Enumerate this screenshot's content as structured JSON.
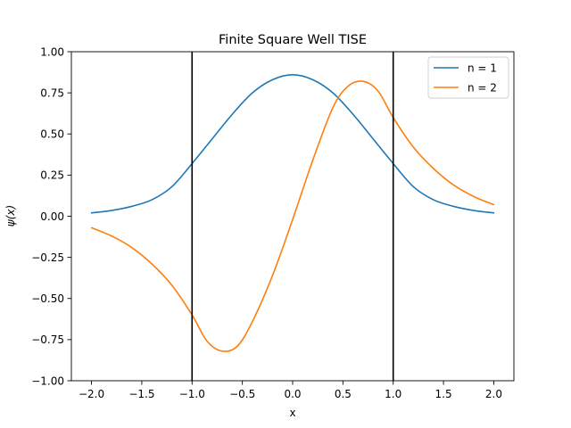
{
  "chart_data": {
    "type": "line",
    "title": "Finite Square Well TISE",
    "xlabel": "x",
    "ylabel": "ψ(x)",
    "xlim": [
      -2.2,
      2.2
    ],
    "ylim": [
      -1.0,
      1.0
    ],
    "xticks": [
      -2.0,
      -1.5,
      -1.0,
      -0.5,
      0.0,
      0.5,
      1.0,
      1.5,
      2.0
    ],
    "xtick_labels": [
      "−2.0",
      "−1.5",
      "−1.0",
      "−0.5",
      "0.0",
      "0.5",
      "1.0",
      "1.5",
      "2.0"
    ],
    "yticks": [
      -1.0,
      -0.75,
      -0.5,
      -0.25,
      0.0,
      0.25,
      0.5,
      0.75,
      1.0
    ],
    "ytick_labels": [
      "−1.00",
      "−0.75",
      "−0.50",
      "−0.25",
      "0.00",
      "0.25",
      "0.50",
      "0.75",
      "1.00"
    ],
    "grid": false,
    "legend_position": "top-right",
    "well_boundaries": [
      -1.0,
      1.0
    ],
    "boundary_color": "#000000",
    "series": [
      {
        "name": "n = 1",
        "color": "#1f77b4",
        "x": [
          -2.0,
          -1.8,
          -1.6,
          -1.4,
          -1.2,
          -1.0,
          -0.8,
          -0.6,
          -0.4,
          -0.2,
          0.0,
          0.2,
          0.4,
          0.6,
          0.8,
          1.0,
          1.2,
          1.4,
          1.6,
          1.8,
          2.0
        ],
        "y": [
          0.02,
          0.035,
          0.06,
          0.1,
          0.18,
          0.32,
          0.47,
          0.62,
          0.75,
          0.83,
          0.86,
          0.83,
          0.75,
          0.62,
          0.47,
          0.32,
          0.18,
          0.1,
          0.06,
          0.035,
          0.02
        ]
      },
      {
        "name": "n = 2",
        "color": "#ff7f0e",
        "x": [
          -2.0,
          -1.8,
          -1.6,
          -1.4,
          -1.2,
          -1.0,
          -0.85,
          -0.7,
          -0.55,
          -0.4,
          -0.2,
          0.0,
          0.2,
          0.4,
          0.55,
          0.7,
          0.85,
          1.0,
          1.2,
          1.4,
          1.6,
          1.8,
          2.0
        ],
        "y": [
          -0.07,
          -0.12,
          -0.19,
          -0.29,
          -0.42,
          -0.6,
          -0.76,
          -0.82,
          -0.79,
          -0.64,
          -0.36,
          -0.02,
          0.34,
          0.66,
          0.79,
          0.82,
          0.76,
          0.6,
          0.42,
          0.29,
          0.19,
          0.12,
          0.07
        ]
      }
    ]
  }
}
